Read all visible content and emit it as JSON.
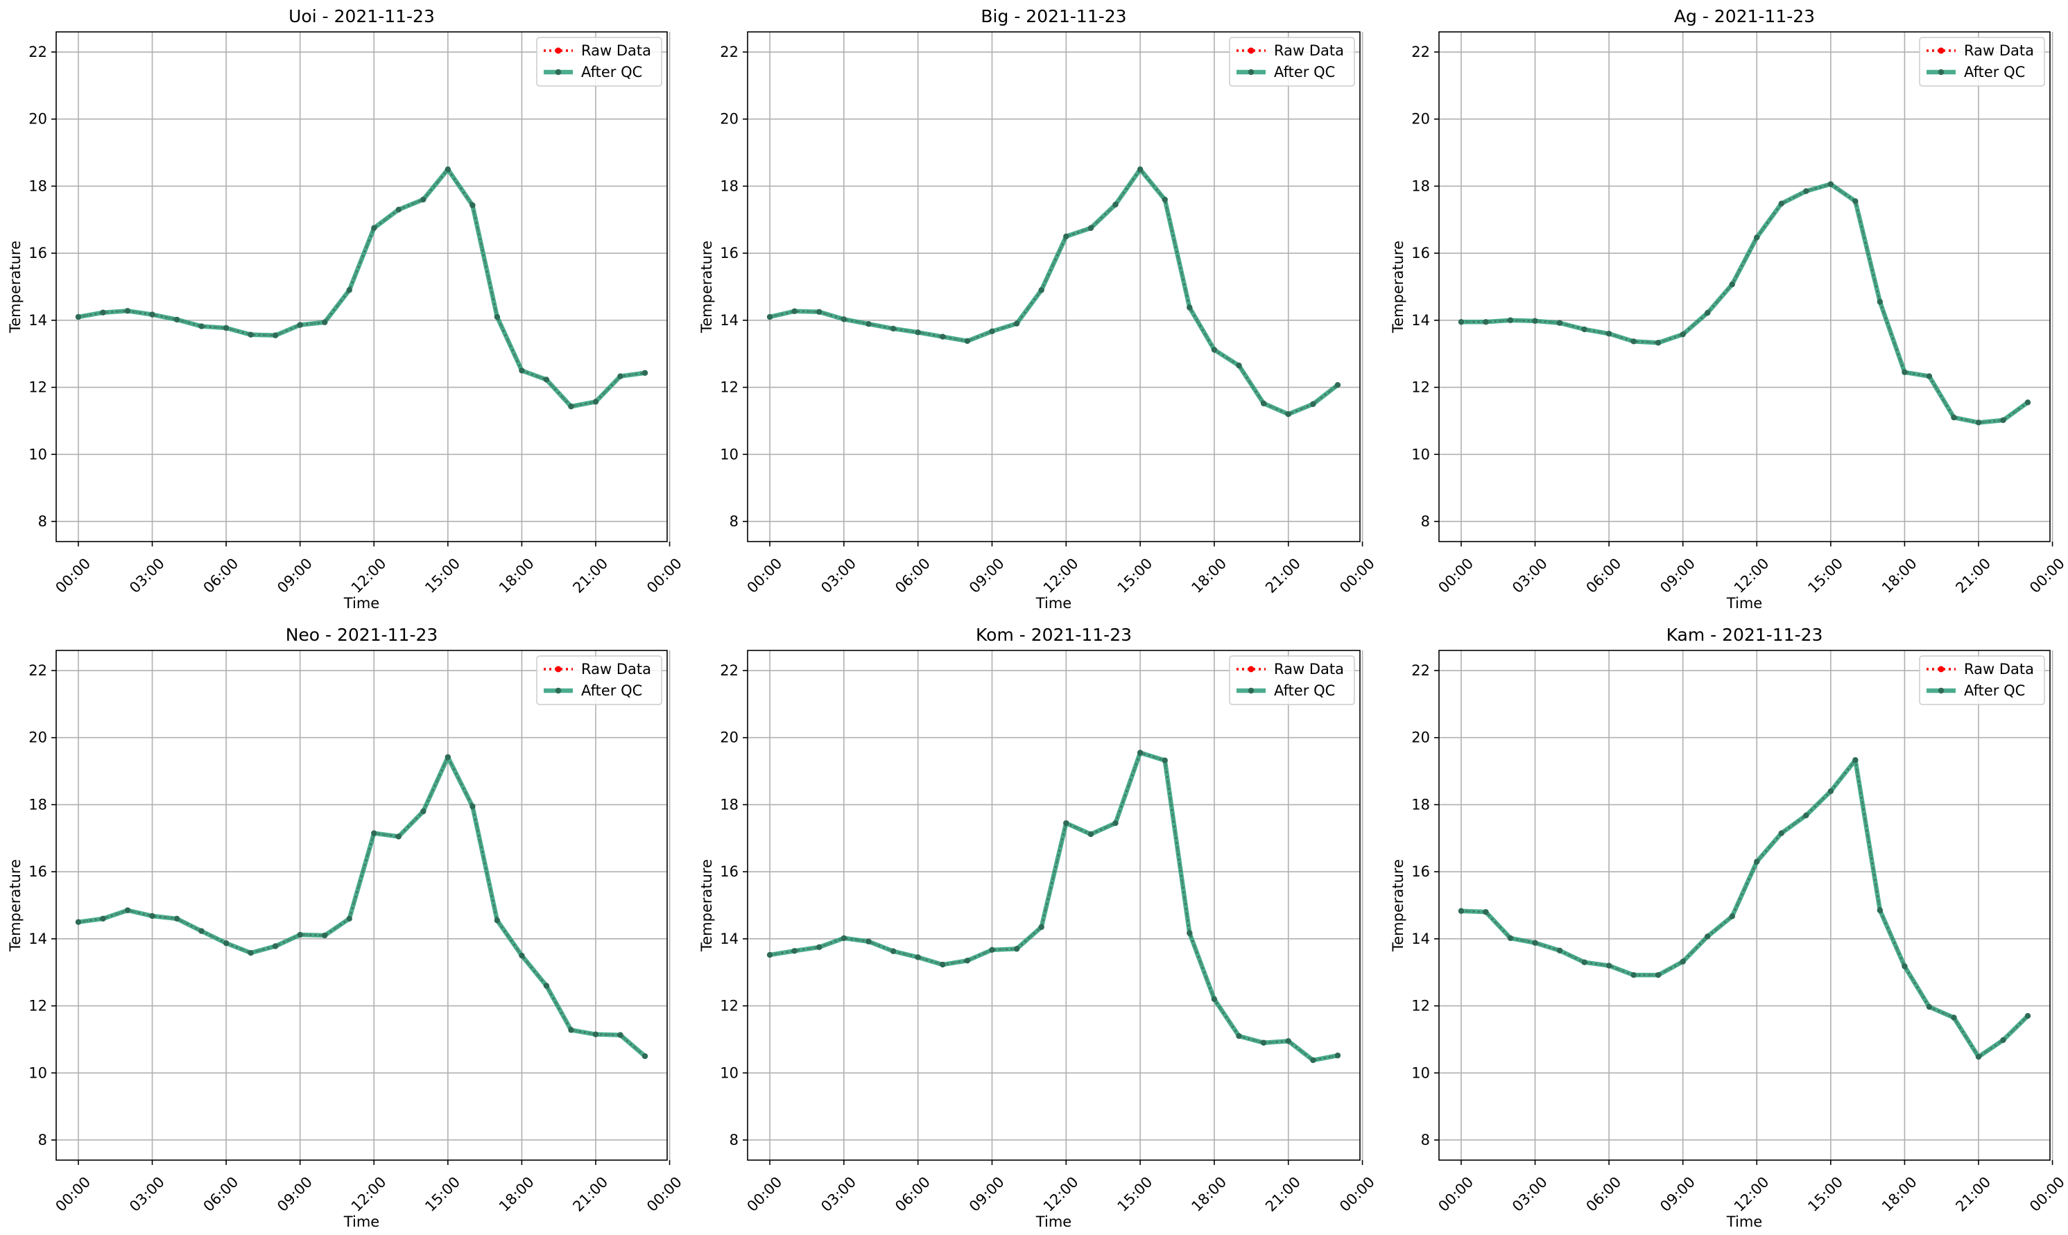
{
  "colors": {
    "raw": "#ff0000",
    "qc_line": "#2a9d7a",
    "qc_marker": "#2e6b55",
    "grid": "#b0b0b0",
    "axes": "#000000"
  },
  "legend": {
    "position": "top-right",
    "raw_label": "Raw Data",
    "qc_label": "After QC"
  },
  "chart_data": [
    {
      "type": "line",
      "title": "Uoi - 2021-11-23",
      "xlabel": "Time",
      "ylabel": "Temperature",
      "ylim": [
        7.4,
        22.6
      ],
      "xlim": [
        -0.9,
        23.9
      ],
      "yticks": [
        8,
        10,
        12,
        14,
        16,
        18,
        20,
        22
      ],
      "xticks": [
        0,
        3,
        6,
        9,
        12,
        15,
        18,
        21,
        24
      ],
      "xticklabels": [
        "00:00",
        "03:00",
        "06:00",
        "09:00",
        "12:00",
        "15:00",
        "18:00",
        "21:00",
        "00:00"
      ],
      "grid": true,
      "x": [
        0,
        1,
        2,
        3,
        4,
        5,
        6,
        7,
        8,
        9,
        10,
        11,
        12,
        13,
        14,
        15,
        16,
        17,
        18,
        19,
        20,
        21,
        22,
        23
      ],
      "series": [
        {
          "name": "Raw Data",
          "values": [
            14.1,
            14.23,
            14.28,
            14.17,
            14.02,
            13.82,
            13.77,
            13.57,
            13.55,
            13.86,
            13.94,
            14.9,
            16.75,
            17.3,
            17.6,
            18.5,
            17.43,
            14.1,
            12.5,
            12.23,
            11.43,
            11.57,
            12.33,
            12.43
          ]
        },
        {
          "name": "After QC",
          "values": [
            14.1,
            14.23,
            14.28,
            14.17,
            14.02,
            13.82,
            13.77,
            13.57,
            13.55,
            13.86,
            13.94,
            14.9,
            16.75,
            17.3,
            17.6,
            18.5,
            17.43,
            14.1,
            12.5,
            12.23,
            11.43,
            11.57,
            12.33,
            12.43
          ]
        }
      ]
    },
    {
      "type": "line",
      "title": "Big - 2021-11-23",
      "xlabel": "Time",
      "ylabel": "Temperature",
      "ylim": [
        7.4,
        22.6
      ],
      "xlim": [
        -0.9,
        23.9
      ],
      "yticks": [
        8,
        10,
        12,
        14,
        16,
        18,
        20,
        22
      ],
      "xticks": [
        0,
        3,
        6,
        9,
        12,
        15,
        18,
        21,
        24
      ],
      "xticklabels": [
        "00:00",
        "03:00",
        "06:00",
        "09:00",
        "12:00",
        "15:00",
        "18:00",
        "21:00",
        "00:00"
      ],
      "grid": true,
      "x": [
        0,
        1,
        2,
        3,
        4,
        5,
        6,
        7,
        8,
        9,
        10,
        11,
        12,
        13,
        14,
        15,
        16,
        17,
        18,
        19,
        20,
        21,
        22,
        23
      ],
      "series": [
        {
          "name": "Raw Data",
          "values": [
            14.1,
            14.27,
            14.25,
            14.03,
            13.89,
            13.75,
            13.64,
            13.51,
            13.38,
            13.67,
            13.9,
            14.9,
            16.5,
            16.75,
            17.45,
            18.5,
            17.6,
            14.38,
            13.12,
            12.65,
            11.52,
            11.2,
            11.5,
            12.07
          ]
        },
        {
          "name": "After QC",
          "values": [
            14.1,
            14.27,
            14.25,
            14.03,
            13.89,
            13.75,
            13.64,
            13.51,
            13.38,
            13.67,
            13.9,
            14.9,
            16.5,
            16.75,
            17.45,
            18.5,
            17.6,
            14.38,
            13.12,
            12.65,
            11.52,
            11.2,
            11.5,
            12.07
          ]
        }
      ]
    },
    {
      "type": "line",
      "title": "Ag - 2021-11-23",
      "xlabel": "Time",
      "ylabel": "Temperature",
      "ylim": [
        7.4,
        22.6
      ],
      "xlim": [
        -0.9,
        23.9
      ],
      "yticks": [
        8,
        10,
        12,
        14,
        16,
        18,
        20,
        22
      ],
      "xticks": [
        0,
        3,
        6,
        9,
        12,
        15,
        18,
        21,
        24
      ],
      "xticklabels": [
        "00:00",
        "03:00",
        "06:00",
        "09:00",
        "12:00",
        "15:00",
        "18:00",
        "21:00",
        "00:00"
      ],
      "grid": true,
      "x": [
        0,
        1,
        2,
        3,
        4,
        5,
        6,
        7,
        8,
        9,
        10,
        11,
        12,
        13,
        14,
        15,
        16,
        17,
        18,
        19,
        20,
        21,
        22,
        23
      ],
      "series": [
        {
          "name": "Raw Data",
          "values": [
            13.95,
            13.95,
            14.0,
            13.98,
            13.92,
            13.73,
            13.6,
            13.37,
            13.33,
            13.58,
            14.22,
            15.07,
            16.47,
            17.48,
            17.85,
            18.06,
            17.55,
            14.55,
            12.45,
            12.33,
            11.1,
            10.95,
            11.02,
            11.55
          ]
        },
        {
          "name": "After QC",
          "values": [
            13.95,
            13.95,
            14.0,
            13.98,
            13.92,
            13.73,
            13.6,
            13.37,
            13.33,
            13.58,
            14.22,
            15.07,
            16.47,
            17.48,
            17.85,
            18.06,
            17.55,
            14.55,
            12.45,
            12.33,
            11.1,
            10.95,
            11.02,
            11.55
          ]
        }
      ]
    },
    {
      "type": "line",
      "title": "Neo - 2021-11-23",
      "xlabel": "Time",
      "ylabel": "Temperature",
      "ylim": [
        7.4,
        22.6
      ],
      "xlim": [
        -0.9,
        23.9
      ],
      "yticks": [
        8,
        10,
        12,
        14,
        16,
        18,
        20,
        22
      ],
      "xticks": [
        0,
        3,
        6,
        9,
        12,
        15,
        18,
        21,
        24
      ],
      "xticklabels": [
        "00:00",
        "03:00",
        "06:00",
        "09:00",
        "12:00",
        "15:00",
        "18:00",
        "21:00",
        "00:00"
      ],
      "grid": true,
      "x": [
        0,
        1,
        2,
        3,
        4,
        5,
        6,
        7,
        8,
        9,
        10,
        11,
        12,
        13,
        14,
        15,
        16,
        17,
        18,
        19,
        20,
        21,
        22,
        23
      ],
      "series": [
        {
          "name": "Raw Data",
          "values": [
            14.5,
            14.6,
            14.85,
            14.68,
            14.6,
            14.23,
            13.87,
            13.58,
            13.78,
            14.12,
            14.1,
            14.6,
            17.15,
            17.05,
            17.8,
            19.42,
            17.95,
            14.55,
            13.5,
            12.6,
            11.28,
            11.15,
            11.13,
            10.5
          ]
        },
        {
          "name": "After QC",
          "values": [
            14.5,
            14.6,
            14.85,
            14.68,
            14.6,
            14.23,
            13.87,
            13.58,
            13.78,
            14.12,
            14.1,
            14.6,
            17.15,
            17.05,
            17.8,
            19.42,
            17.95,
            14.55,
            13.5,
            12.6,
            11.28,
            11.15,
            11.13,
            10.5
          ]
        }
      ]
    },
    {
      "type": "line",
      "title": "Kom - 2021-11-23",
      "xlabel": "Time",
      "ylabel": "Temperature",
      "ylim": [
        7.4,
        22.6
      ],
      "xlim": [
        -0.9,
        23.9
      ],
      "yticks": [
        8,
        10,
        12,
        14,
        16,
        18,
        20,
        22
      ],
      "xticks": [
        0,
        3,
        6,
        9,
        12,
        15,
        18,
        21,
        24
      ],
      "xticklabels": [
        "00:00",
        "03:00",
        "06:00",
        "09:00",
        "12:00",
        "15:00",
        "18:00",
        "21:00",
        "00:00"
      ],
      "grid": true,
      "x": [
        0,
        1,
        2,
        3,
        4,
        5,
        6,
        7,
        8,
        9,
        10,
        11,
        12,
        13,
        14,
        15,
        16,
        17,
        18,
        19,
        20,
        21,
        22,
        23
      ],
      "series": [
        {
          "name": "Raw Data",
          "values": [
            13.52,
            13.64,
            13.75,
            14.02,
            13.92,
            13.63,
            13.45,
            13.23,
            13.35,
            13.67,
            13.7,
            14.35,
            17.45,
            17.12,
            17.45,
            19.55,
            19.32,
            14.17,
            12.2,
            11.1,
            10.9,
            10.95,
            10.38,
            10.52
          ]
        },
        {
          "name": "After QC",
          "values": [
            13.52,
            13.64,
            13.75,
            14.02,
            13.92,
            13.63,
            13.45,
            13.23,
            13.35,
            13.67,
            13.7,
            14.35,
            17.45,
            17.12,
            17.45,
            19.55,
            19.32,
            14.17,
            12.2,
            11.1,
            10.9,
            10.95,
            10.38,
            10.52
          ]
        }
      ]
    },
    {
      "type": "line",
      "title": "Kam - 2021-11-23",
      "xlabel": "Time",
      "ylabel": "Temperature",
      "ylim": [
        7.4,
        22.6
      ],
      "xlim": [
        -0.9,
        23.9
      ],
      "yticks": [
        8,
        10,
        12,
        14,
        16,
        18,
        20,
        22
      ],
      "xticks": [
        0,
        3,
        6,
        9,
        12,
        15,
        18,
        21,
        24
      ],
      "xticklabels": [
        "00:00",
        "03:00",
        "06:00",
        "09:00",
        "12:00",
        "15:00",
        "18:00",
        "21:00",
        "00:00"
      ],
      "grid": true,
      "x": [
        0,
        1,
        2,
        3,
        4,
        5,
        6,
        7,
        8,
        9,
        10,
        11,
        12,
        13,
        14,
        15,
        16,
        17,
        18,
        19,
        20,
        21,
        22,
        23
      ],
      "series": [
        {
          "name": "Raw Data",
          "values": [
            14.83,
            14.8,
            14.02,
            13.88,
            13.65,
            13.3,
            13.2,
            12.92,
            12.92,
            13.32,
            14.07,
            14.67,
            16.3,
            17.15,
            17.68,
            18.4,
            19.33,
            14.85,
            13.18,
            11.97,
            11.65,
            10.48,
            10.98,
            11.7
          ]
        },
        {
          "name": "After QC",
          "values": [
            14.83,
            14.8,
            14.02,
            13.88,
            13.65,
            13.3,
            13.2,
            12.92,
            12.92,
            13.32,
            14.07,
            14.67,
            16.3,
            17.15,
            17.68,
            18.4,
            19.33,
            14.85,
            13.18,
            11.97,
            11.65,
            10.48,
            10.98,
            11.7
          ]
        }
      ]
    }
  ]
}
